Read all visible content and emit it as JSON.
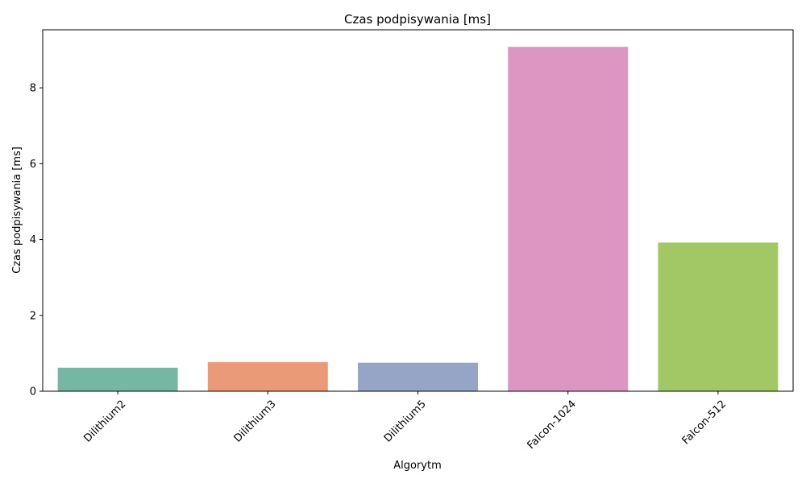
{
  "chart_data": {
    "type": "bar",
    "title": "Czas podpisywania [ms]",
    "xlabel": "Algorytm",
    "ylabel": "Czas podpisywania [ms]",
    "categories": [
      "Dilithium2",
      "Dilithium3",
      "Dilithium5",
      "Falcon-1024",
      "Falcon-512"
    ],
    "values": [
      0.62,
      0.77,
      0.75,
      9.08,
      3.92
    ],
    "colors": [
      "#76b7a3",
      "#ea9a77",
      "#96a4c5",
      "#db96c1",
      "#a2c866"
    ],
    "yticks": [
      0,
      2,
      4,
      6,
      8
    ],
    "ylim": [
      0,
      9.53
    ],
    "xtick_rotation_deg": 45,
    "grid": false
  }
}
